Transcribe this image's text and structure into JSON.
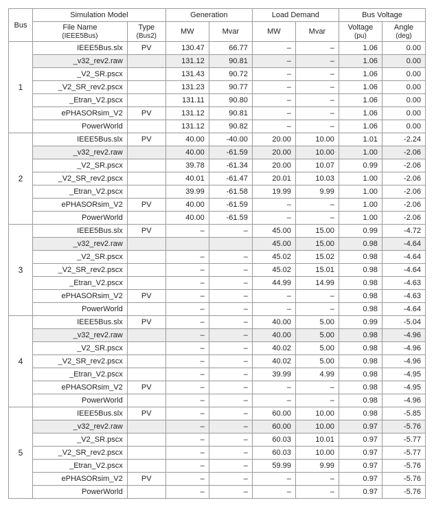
{
  "headers": {
    "bus": "Bus",
    "sim": "Simulation Model",
    "gen": "Generation",
    "load": "Load Demand",
    "volt": "Bus Voltage",
    "file": "File Name",
    "file2": "(IEEE5Bus)",
    "type": "Type",
    "type2": "(Bus2)",
    "mw": "MW",
    "mvar": "Mvar",
    "vpu": "Voltage",
    "vpu2": "(pu)",
    "vang": "Angle",
    "vang2": "(deg)"
  },
  "style": {
    "hl_bg": "#ededed",
    "border": "#999999",
    "font_size": 11
  },
  "groups": [
    {
      "bus": "1",
      "rows": [
        {
          "file": "IEEE5Bus.slx",
          "type": "PV",
          "gmw": "130.47",
          "gmv": "66.77",
          "lmw": "–",
          "lmv": "–",
          "vpu": "1.06",
          "ang": "0.00",
          "hl": false
        },
        {
          "file": "_v32_rev2.raw",
          "type": "",
          "gmw": "131.12",
          "gmv": "90.81",
          "lmw": "–",
          "lmv": "–",
          "vpu": "1.06",
          "ang": "0.00",
          "hl": true
        },
        {
          "file": "_V2_SR.pscx",
          "type": "",
          "gmw": "131.43",
          "gmv": "90.72",
          "lmw": "–",
          "lmv": "–",
          "vpu": "1.06",
          "ang": "0.00",
          "hl": false
        },
        {
          "file": "_V2_SR_rev2.pscx",
          "type": "",
          "gmw": "131.23",
          "gmv": "90.77",
          "lmw": "–",
          "lmv": "–",
          "vpu": "1.06",
          "ang": "0.00",
          "hl": false
        },
        {
          "file": "_Etran_V2.pscx",
          "type": "",
          "gmw": "131.11",
          "gmv": "90.80",
          "lmw": "–",
          "lmv": "–",
          "vpu": "1.06",
          "ang": "0.00",
          "hl": false
        },
        {
          "file": "ePHASORsim_V2",
          "type": "PV",
          "gmw": "131.12",
          "gmv": "90.81",
          "lmw": "–",
          "lmv": "–",
          "vpu": "1.06",
          "ang": "0.00",
          "hl": false
        },
        {
          "file": "PowerWorld",
          "type": "",
          "gmw": "131.12",
          "gmv": "90.82",
          "lmw": "–",
          "lmv": "–",
          "vpu": "1.06",
          "ang": "0.00",
          "hl": false
        }
      ]
    },
    {
      "bus": "2",
      "rows": [
        {
          "file": "IEEE5Bus.slx",
          "type": "PV",
          "gmw": "40.00",
          "gmv": "-40.00",
          "lmw": "20.00",
          "lmv": "10.00",
          "vpu": "1.01",
          "ang": "-2.24",
          "hl": false
        },
        {
          "file": "_v32_rev2.raw",
          "type": "",
          "gmw": "40.00",
          "gmv": "-61.59",
          "lmw": "20.00",
          "lmv": "10.00",
          "vpu": "1.00",
          "ang": "-2.06",
          "hl": true
        },
        {
          "file": "_V2_SR.pscx",
          "type": "",
          "gmw": "39.78",
          "gmv": "-61.34",
          "lmw": "20.00",
          "lmv": "10.07",
          "vpu": "0.99",
          "ang": "-2.06",
          "hl": false
        },
        {
          "file": "_V2_SR_rev2.pscx",
          "type": "",
          "gmw": "40.01",
          "gmv": "-61.47",
          "lmw": "20.01",
          "lmv": "10.03",
          "vpu": "1.00",
          "ang": "-2.06",
          "hl": false
        },
        {
          "file": "_Etran_V2.pscx",
          "type": "",
          "gmw": "39.99",
          "gmv": "-61.58",
          "lmw": "19.99",
          "lmv": "9.99",
          "vpu": "1.00",
          "ang": "-2.06",
          "hl": false
        },
        {
          "file": "ePHASORsim_V2",
          "type": "PV",
          "gmw": "40.00",
          "gmv": "-61.59",
          "lmw": "–",
          "lmv": "–",
          "vpu": "1.00",
          "ang": "-2.06",
          "hl": false
        },
        {
          "file": "PowerWorld",
          "type": "",
          "gmw": "40.00",
          "gmv": "-61.59",
          "lmw": "–",
          "lmv": "–",
          "vpu": "1.00",
          "ang": "-2.06",
          "hl": false
        }
      ]
    },
    {
      "bus": "3",
      "rows": [
        {
          "file": "IEEE5Bus.slx",
          "type": "PV",
          "gmw": "–",
          "gmv": "–",
          "lmw": "45.00",
          "lmv": "15.00",
          "vpu": "0.99",
          "ang": "-4.72",
          "hl": false
        },
        {
          "file": "_v32_rev2.raw",
          "type": "",
          "gmw": "",
          "gmv": "",
          "lmw": "45.00",
          "lmv": "15.00",
          "vpu": "0.98",
          "ang": "-4.64",
          "hl": true
        },
        {
          "file": "_V2_SR.pscx",
          "type": "",
          "gmw": "–",
          "gmv": "–",
          "lmw": "45.02",
          "lmv": "15.02",
          "vpu": "0.98",
          "ang": "-4.64",
          "hl": false
        },
        {
          "file": "_V2_SR_rev2.pscx",
          "type": "",
          "gmw": "–",
          "gmv": "–",
          "lmw": "45.02",
          "lmv": "15.01",
          "vpu": "0.98",
          "ang": "-4.64",
          "hl": false
        },
        {
          "file": "_Etran_V2.pscx",
          "type": "",
          "gmw": "–",
          "gmv": "–",
          "lmw": "44.99",
          "lmv": "14.99",
          "vpu": "0.98",
          "ang": "-4.63",
          "hl": false
        },
        {
          "file": "ePHASORsim_V2",
          "type": "PV",
          "gmw": "–",
          "gmv": "–",
          "lmw": "–",
          "lmv": "–",
          "vpu": "0.98",
          "ang": "-4.63",
          "hl": false
        },
        {
          "file": "PowerWorld",
          "type": "",
          "gmw": "–",
          "gmv": "–",
          "lmw": "–",
          "lmv": "–",
          "vpu": "0.98",
          "ang": "-4.64",
          "hl": false
        }
      ]
    },
    {
      "bus": "4",
      "rows": [
        {
          "file": "IEEE5Bus.slx",
          "type": "PV",
          "gmw": "–",
          "gmv": "–",
          "lmw": "40.00",
          "lmv": "5.00",
          "vpu": "0.99",
          "ang": "-5.04",
          "hl": false
        },
        {
          "file": "_v32_rev2.raw",
          "type": "",
          "gmw": "–",
          "gmv": "–",
          "lmw": "40.00",
          "lmv": "5.00",
          "vpu": "0.98",
          "ang": "-4.96",
          "hl": true
        },
        {
          "file": "_V2_SR.pscx",
          "type": "",
          "gmw": "–",
          "gmv": "–",
          "lmw": "40.02",
          "lmv": "5.00",
          "vpu": "0.98",
          "ang": "-4.96",
          "hl": false
        },
        {
          "file": "_V2_SR_rev2.pscx",
          "type": "",
          "gmw": "–",
          "gmv": "–",
          "lmw": "40.02",
          "lmv": "5.00",
          "vpu": "0.98",
          "ang": "-4.96",
          "hl": false
        },
        {
          "file": "_Etran_V2.pscx",
          "type": "",
          "gmw": "–",
          "gmv": "–",
          "lmw": "39.99",
          "lmv": "4.99",
          "vpu": "0.98",
          "ang": "-4.95",
          "hl": false
        },
        {
          "file": "ePHASORsim_V2",
          "type": "PV",
          "gmw": "–",
          "gmv": "–",
          "lmw": "–",
          "lmv": "–",
          "vpu": "0.98",
          "ang": "-4.95",
          "hl": false
        },
        {
          "file": "PowerWorld",
          "type": "",
          "gmw": "–",
          "gmv": "–",
          "lmw": "–",
          "lmv": "–",
          "vpu": "0.98",
          "ang": "-4.96",
          "hl": false
        }
      ]
    },
    {
      "bus": "5",
      "rows": [
        {
          "file": "IEEE5Bus.slx",
          "type": "PV",
          "gmw": "–",
          "gmv": "–",
          "lmw": "60.00",
          "lmv": "10.00",
          "vpu": "0.98",
          "ang": "-5.85",
          "hl": false
        },
        {
          "file": "_v32_rev2.raw",
          "type": "",
          "gmw": "–",
          "gmv": "–",
          "lmw": "60.00",
          "lmv": "10.00",
          "vpu": "0.97",
          "ang": "-5.76",
          "hl": true
        },
        {
          "file": "_V2_SR.pscx",
          "type": "",
          "gmw": "–",
          "gmv": "–",
          "lmw": "60.03",
          "lmv": "10.01",
          "vpu": "0.97",
          "ang": "-5.77",
          "hl": false
        },
        {
          "file": "_V2_SR_rev2.pscx",
          "type": "",
          "gmw": "–",
          "gmv": "–",
          "lmw": "60.03",
          "lmv": "10.00",
          "vpu": "0.97",
          "ang": "-5.77",
          "hl": false
        },
        {
          "file": "_Etran_V2.pscx",
          "type": "",
          "gmw": "–",
          "gmv": "–",
          "lmw": "59.99",
          "lmv": "9.99",
          "vpu": "0.97",
          "ang": "-5.76",
          "hl": false
        },
        {
          "file": "ePHASORsim_V2",
          "type": "PV",
          "gmw": "–",
          "gmv": "–",
          "lmw": "–",
          "lmv": "–",
          "vpu": "0.97",
          "ang": "-5.76",
          "hl": false
        },
        {
          "file": "PowerWorld",
          "type": "",
          "gmw": "–",
          "gmv": "–",
          "lmw": "–",
          "lmv": "–",
          "vpu": "0.97",
          "ang": "-5.76",
          "hl": false
        }
      ]
    }
  ]
}
